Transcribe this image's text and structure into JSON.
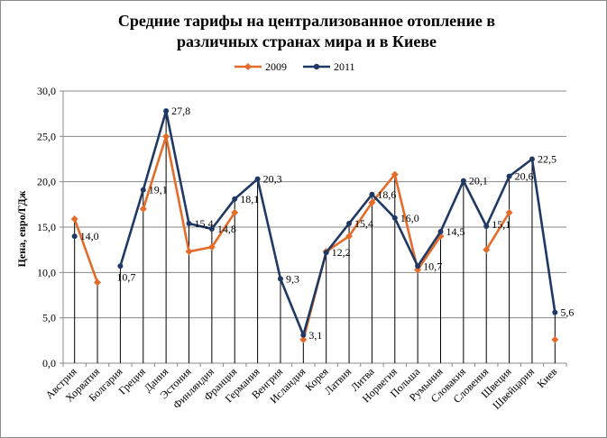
{
  "chart_data": {
    "type": "line",
    "title_lines": [
      "Средние тарифы на централизованное отопление в",
      "различных странах мира и в Киеве"
    ],
    "ylabel": "Цена, евро/ГДж",
    "xlabel": "",
    "ylim": [
      0,
      30
    ],
    "yticks": [
      "0,0",
      "5,0",
      "10,0",
      "15,0",
      "20,0",
      "25,0",
      "30,0"
    ],
    "legend_position": "top",
    "grid": true,
    "categories": [
      "Австрия",
      "Хорватия",
      "Болгария",
      "Греция",
      "Дания",
      "Эстония",
      "Финляндия",
      "Франция",
      "Германия",
      "Венгрия",
      "Исландия",
      "Корея",
      "Латвия",
      "Литва",
      "Норвегия",
      "Польша",
      "Румыния",
      "Словакия",
      "Словения",
      "Швеция",
      "Швейцария",
      "Киев"
    ],
    "series": [
      {
        "name": "2009",
        "color": "#e46c2a",
        "marker": "diamond",
        "values": [
          15.9,
          8.9,
          null,
          17.0,
          25.0,
          12.3,
          12.8,
          16.6,
          null,
          null,
          2.6,
          12.3,
          14.0,
          17.7,
          20.8,
          10.3,
          14.0,
          null,
          12.5,
          16.6,
          null,
          2.6
        ]
      },
      {
        "name": "2011",
        "color": "#1f3864",
        "marker": "circle",
        "values": [
          14.0,
          null,
          10.7,
          19.1,
          27.8,
          15.4,
          14.8,
          18.1,
          20.3,
          9.3,
          3.1,
          12.2,
          15.4,
          18.6,
          16.0,
          10.7,
          14.5,
          20.1,
          15.1,
          20.6,
          22.5,
          5.6
        ]
      }
    ],
    "data_labels": [
      {
        "category": "Австрия",
        "text": "14,0"
      },
      {
        "category": "Болгария",
        "text": "10,7"
      },
      {
        "category": "Греция",
        "text": "19,1"
      },
      {
        "category": "Дания",
        "text": "27,8"
      },
      {
        "category": "Эстония",
        "text": "15,4"
      },
      {
        "category": "Финляндия",
        "text": "14,8"
      },
      {
        "category": "Франция",
        "text": "18,1"
      },
      {
        "category": "Германия",
        "text": "20,3"
      },
      {
        "category": "Венгрия",
        "text": "9,3"
      },
      {
        "category": "Исландия",
        "text": "3,1"
      },
      {
        "category": "Корея",
        "text": "12,2"
      },
      {
        "category": "Латвия",
        "text": "15,4"
      },
      {
        "category": "Литва",
        "text": "18,6"
      },
      {
        "category": "Норвегия",
        "text": "16,0"
      },
      {
        "category": "Польша",
        "text": "10,7"
      },
      {
        "category": "Румыния",
        "text": "14,5"
      },
      {
        "category": "Словакия",
        "text": "20,1"
      },
      {
        "category": "Словения",
        "text": "15,1"
      },
      {
        "category": "Швеция",
        "text": "20,6"
      },
      {
        "category": "Швейцария",
        "text": "22,5"
      },
      {
        "category": "Киев",
        "text": "5,6"
      }
    ]
  }
}
